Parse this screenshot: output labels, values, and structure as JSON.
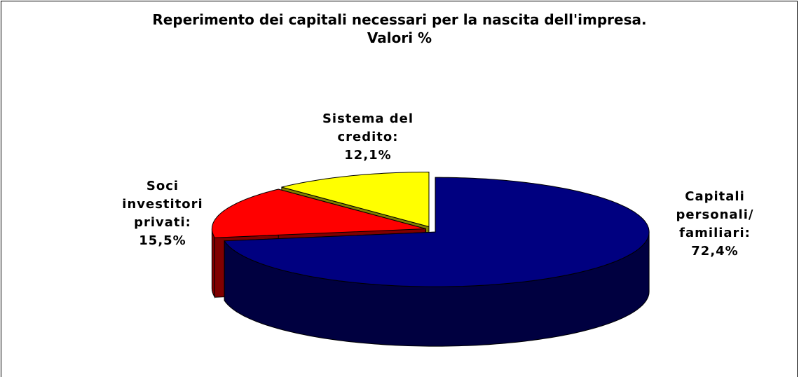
{
  "chart_data": {
    "type": "pie",
    "title": "Reperimento dei capitali necessari per la nascita dell'impresa.",
    "subtitle": "Valori %",
    "categories": [
      "Capitali personali/ familiari:",
      "Soci investitori privati:",
      "Sistema del credito:"
    ],
    "values": [
      72.4,
      15.5,
      12.1
    ],
    "value_labels": [
      "72,4%",
      "15,5%",
      "12,1%"
    ],
    "colors": [
      "#000080",
      "#ff0000",
      "#ffff00"
    ],
    "three_d": true
  }
}
